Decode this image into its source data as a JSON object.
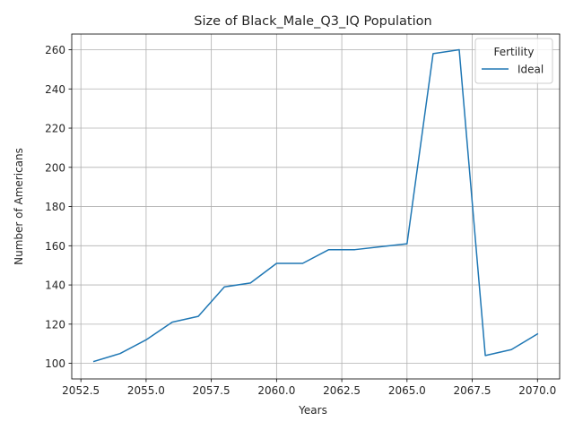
{
  "chart_data": {
    "type": "line",
    "title": "Size of Black_Male_Q3_IQ Population",
    "xlabel": "Years",
    "ylabel": "Number of Americans",
    "xlim": [
      2052.15,
      2070.85
    ],
    "ylim": [
      92.05,
      268.0
    ],
    "x_ticks": [
      2052.5,
      2055.0,
      2057.5,
      2060.0,
      2062.5,
      2065.0,
      2067.5,
      2070.0
    ],
    "x_tick_labels": [
      "2052.5",
      "2055.0",
      "2057.5",
      "2060.0",
      "2062.5",
      "2065.0",
      "2067.5",
      "2070.0"
    ],
    "y_ticks": [
      100,
      120,
      140,
      160,
      180,
      200,
      220,
      240,
      260
    ],
    "y_tick_labels": [
      "100",
      "120",
      "140",
      "160",
      "180",
      "200",
      "220",
      "240",
      "260"
    ],
    "grid": true,
    "legend": {
      "title": "Fertility",
      "placement": "top-right"
    },
    "series": [
      {
        "name": "Ideal",
        "color": "#1f77b4",
        "x": [
          2053,
          2054,
          2055,
          2056,
          2057,
          2058,
          2059,
          2060,
          2061,
          2062,
          2063,
          2064,
          2065,
          2066,
          2067,
          2068,
          2069,
          2070
        ],
        "y": [
          101,
          105,
          112,
          121,
          124,
          139,
          141,
          151,
          151,
          158,
          158,
          159.5,
          161,
          258,
          260,
          104,
          107,
          115
        ]
      }
    ]
  }
}
